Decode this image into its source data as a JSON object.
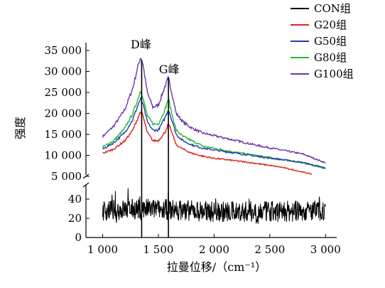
{
  "chart_data": {
    "type": "line",
    "xlabel": "拉曼位移/（cm⁻¹）",
    "ylabel": "强度",
    "xlim": [
      850,
      3100
    ],
    "x_ticks": [
      1000,
      1500,
      2000,
      2500,
      3000
    ],
    "x_tick_labels": [
      "1 000",
      "1 500",
      "2 000",
      "2 500",
      "3 000"
    ],
    "y_axis_break": true,
    "y_upper_range": [
      5000,
      35000
    ],
    "y_upper_ticks": [
      5000,
      10000,
      15000,
      20000,
      25000,
      30000,
      35000
    ],
    "y_upper_tick_labels": [
      "5 000",
      "10 000",
      "15 000",
      "20 000",
      "25 000",
      "30 000",
      "35 000"
    ],
    "y_lower_range": [
      0,
      50
    ],
    "y_lower_ticks": [
      0,
      20,
      40
    ],
    "y_lower_tick_labels": [
      "0",
      "20",
      "40"
    ],
    "annotations": [
      {
        "text": "D峰",
        "x": 1350
      },
      {
        "text": "G峰",
        "x": 1590
      }
    ],
    "peak_positions": [
      1350,
      1590
    ],
    "series": [
      {
        "name": "CON组",
        "color": "#000000",
        "panel": "lower",
        "noise": true,
        "points": [
          [
            1000,
            28
          ],
          [
            1350,
            30
          ],
          [
            1590,
            29
          ],
          [
            2000,
            27
          ],
          [
            2500,
            27
          ],
          [
            3000,
            28
          ]
        ]
      },
      {
        "name": "G20组",
        "color": "#e0201b",
        "panel": "upper",
        "points": [
          [
            1000,
            10500
          ],
          [
            1100,
            11500
          ],
          [
            1200,
            13500
          ],
          [
            1270,
            16000
          ],
          [
            1310,
            18500
          ],
          [
            1340,
            20500
          ],
          [
            1360,
            19500
          ],
          [
            1400,
            15500
          ],
          [
            1450,
            13500
          ],
          [
            1500,
            13500
          ],
          [
            1560,
            15500
          ],
          [
            1590,
            17500
          ],
          [
            1620,
            15500
          ],
          [
            1660,
            12500
          ],
          [
            1720,
            11500
          ],
          [
            1800,
            10500
          ],
          [
            1900,
            9800
          ],
          [
            2000,
            9300
          ],
          [
            2200,
            8700
          ],
          [
            2400,
            8000
          ],
          [
            2600,
            7200
          ],
          [
            2800,
            6000
          ],
          [
            2880,
            5500
          ]
        ]
      },
      {
        "name": "G50组",
        "color": "#1f3fa6",
        "panel": "upper",
        "points": [
          [
            1000,
            11500
          ],
          [
            1100,
            13000
          ],
          [
            1200,
            15500
          ],
          [
            1270,
            18500
          ],
          [
            1310,
            21500
          ],
          [
            1340,
            23500
          ],
          [
            1360,
            22500
          ],
          [
            1400,
            18000
          ],
          [
            1450,
            16000
          ],
          [
            1500,
            16000
          ],
          [
            1560,
            19000
          ],
          [
            1590,
            21000
          ],
          [
            1620,
            18500
          ],
          [
            1660,
            15000
          ],
          [
            1720,
            13500
          ],
          [
            1800,
            12500
          ],
          [
            1900,
            11700
          ],
          [
            2000,
            11300
          ],
          [
            2200,
            10500
          ],
          [
            2400,
            9700
          ],
          [
            2600,
            9000
          ],
          [
            2800,
            8300
          ],
          [
            3000,
            7000
          ]
        ]
      },
      {
        "name": "G80组",
        "color": "#27b83a",
        "panel": "upper",
        "points": [
          [
            1000,
            12000
          ],
          [
            1100,
            13500
          ],
          [
            1200,
            16500
          ],
          [
            1270,
            20000
          ],
          [
            1310,
            23000
          ],
          [
            1340,
            25500
          ],
          [
            1360,
            24000
          ],
          [
            1400,
            19500
          ],
          [
            1450,
            17500
          ],
          [
            1500,
            17500
          ],
          [
            1560,
            21000
          ],
          [
            1590,
            23500
          ],
          [
            1620,
            20000
          ],
          [
            1660,
            16000
          ],
          [
            1720,
            14500
          ],
          [
            1800,
            13500
          ],
          [
            1900,
            12200
          ],
          [
            2000,
            11700
          ],
          [
            2200,
            10700
          ],
          [
            2400,
            9900
          ],
          [
            2600,
            9100
          ],
          [
            2800,
            8200
          ],
          [
            3000,
            6800
          ]
        ]
      },
      {
        "name": "G100组",
        "color": "#6a35a8",
        "panel": "upper",
        "points": [
          [
            1000,
            14500
          ],
          [
            1100,
            17000
          ],
          [
            1200,
            21000
          ],
          [
            1270,
            26000
          ],
          [
            1310,
            30500
          ],
          [
            1340,
            33500
          ],
          [
            1360,
            32000
          ],
          [
            1400,
            25000
          ],
          [
            1450,
            21500
          ],
          [
            1500,
            22000
          ],
          [
            1560,
            26500
          ],
          [
            1590,
            28500
          ],
          [
            1620,
            25000
          ],
          [
            1660,
            20000
          ],
          [
            1720,
            18000
          ],
          [
            1800,
            16500
          ],
          [
            1900,
            15300
          ],
          [
            2000,
            14700
          ],
          [
            2200,
            13500
          ],
          [
            2400,
            12300
          ],
          [
            2600,
            11300
          ],
          [
            2800,
            10300
          ],
          [
            3000,
            8200
          ]
        ]
      }
    ]
  }
}
